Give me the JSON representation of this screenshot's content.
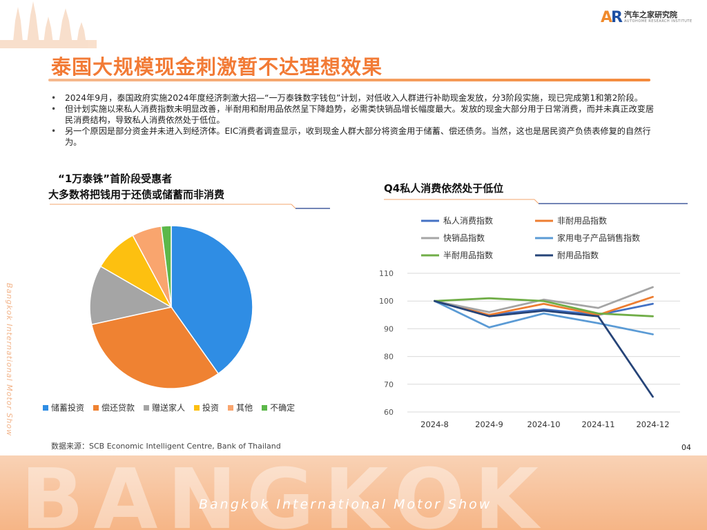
{
  "brand": {
    "mark_a": "A",
    "mark_r": "R",
    "name": "汽车之家研究院",
    "sub": "AUTOHOME RESEARCH INSTITUTE"
  },
  "title": "泰国大规模现金刺激暂不达理想效果",
  "bullets": [
    "2024年9月，泰国政府实施2024年度经济刺激大招—“一万泰铢数字钱包”计划，对低收入人群进行补助现金发放，分3阶段实施，现已完成第1和第2阶段。",
    "但计划实施以来私人消费指数未明显改善，半耐用和耐用品依然呈下降趋势，必需类快销品增长幅度最大。发放的现金大部分用于日常消费，而并未真正改变居民消费结构，导致私人消费依然处于低位。",
    "另一个原因是部分资金并未进入到经济体。EIC消费者调查显示，收到现金人群大部分将资金用于储蓄、偿还债务。当然，这也是居民资产负债表修复的自然行为。"
  ],
  "left_heading_1": "“1万泰铢”首阶段受惠者",
  "left_heading_2": "大多数将把钱用于还债或储蓄而非消费",
  "right_heading": "Q4私人消费依然处于低位",
  "source": "数据来源：SCB Economic Intelligent Centre, Bank of Thailand",
  "page_number": "04",
  "side_text": "Bangkok International Motor Show",
  "footer_word": "BANGKOK",
  "footer_sub": "Bangkok International Motor Show",
  "colors": {
    "accent": "#f27b36"
  },
  "chart_data": [
    {
      "type": "pie",
      "categories": [
        "储蓄投资",
        "偿还贷款",
        "赠送家人",
        "投资",
        "其他",
        "不确定"
      ],
      "values": [
        41,
        32,
        12,
        9,
        6,
        2
      ],
      "unit": "%",
      "colors": [
        "#2f8de4",
        "#ef8232",
        "#a5a5a5",
        "#fdc010",
        "#f9a56e",
        "#5cb84a"
      ],
      "legend_position": "bottom"
    },
    {
      "type": "line",
      "x": [
        "2024-8",
        "2024-9",
        "2024-10",
        "2024-11",
        "2024-12"
      ],
      "ylim": [
        60,
        110
      ],
      "yticks": [
        60,
        70,
        80,
        90,
        100,
        110
      ],
      "grid": true,
      "legend_position": "top",
      "series": [
        {
          "name": "私人消费指数",
          "color": "#4472c4",
          "values": [
            100,
            95,
            97,
            95,
            99
          ]
        },
        {
          "name": "非耐用品指数",
          "color": "#ed7d31",
          "values": [
            100,
            95,
            99,
            95,
            101.5
          ]
        },
        {
          "name": "快销品指数",
          "color": "#a5a5a5",
          "values": [
            100,
            96,
            100.5,
            97.5,
            105
          ]
        },
        {
          "name": "家用电子产品销售指数",
          "color": "#5b9bd5",
          "values": [
            100,
            90.5,
            95.5,
            92,
            88
          ]
        },
        {
          "name": "半耐用品指数",
          "color": "#70ad47",
          "values": [
            100,
            101,
            100,
            95.5,
            94.5
          ]
        },
        {
          "name": "耐用品指数",
          "color": "#264478",
          "values": [
            100,
            94.5,
            96.5,
            94.5,
            65.5
          ]
        }
      ]
    }
  ]
}
